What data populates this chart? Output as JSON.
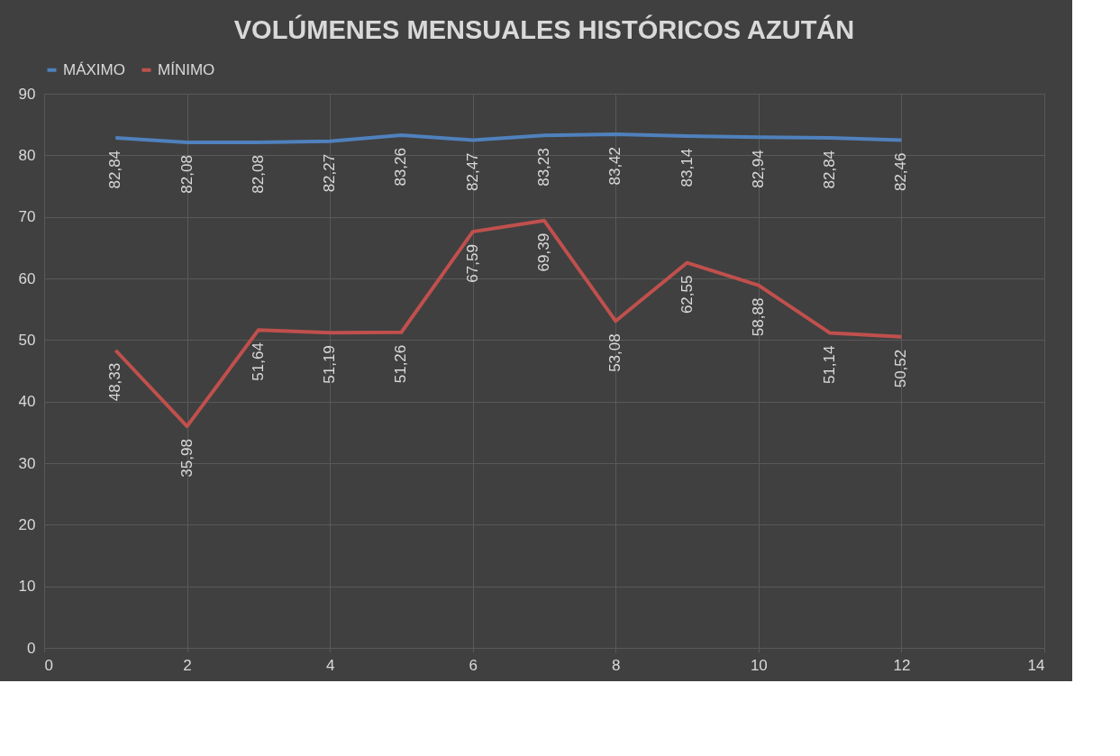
{
  "chart_data": {
    "type": "line",
    "title": "VOLÚMENES MENSUALES HISTÓRICOS AZUTÁN",
    "x": [
      1,
      2,
      3,
      4,
      5,
      6,
      7,
      8,
      9,
      10,
      11,
      12
    ],
    "series": [
      {
        "name": "MÁXIMO",
        "color": "#4f81bd",
        "values": [
          82.84,
          82.08,
          82.08,
          82.27,
          83.26,
          82.47,
          83.23,
          83.42,
          83.14,
          82.94,
          82.84,
          82.46
        ],
        "value_labels": [
          "82,84",
          "82,08",
          "82,08",
          "82,27",
          "83,26",
          "82,47",
          "83,23",
          "83,42",
          "83,14",
          "82,94",
          "82,84",
          "82,46"
        ]
      },
      {
        "name": "MÍNIMO",
        "color": "#c0504d",
        "values": [
          48.33,
          35.98,
          51.64,
          51.19,
          51.26,
          67.59,
          69.39,
          53.08,
          62.55,
          58.88,
          51.14,
          50.52
        ],
        "value_labels": [
          "48,33",
          "35,98",
          "51,64",
          "51,19",
          "51,26",
          "67,59",
          "69,39",
          "53,08",
          "62,55",
          "58,88",
          "51,14",
          "50,52"
        ]
      }
    ],
    "xlim": [
      0,
      14
    ],
    "xticks": [
      0,
      2,
      4,
      6,
      8,
      10,
      12,
      14
    ],
    "ylim": [
      0,
      90
    ],
    "yticks": [
      0,
      10,
      20,
      30,
      40,
      50,
      60,
      70,
      80,
      90
    ],
    "grid": true,
    "legend": "top",
    "marker": "none",
    "line_style": "solid"
  }
}
